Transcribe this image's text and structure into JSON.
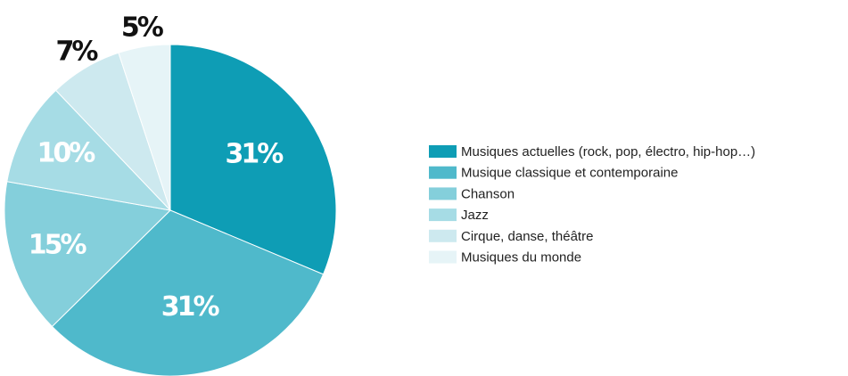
{
  "chart_data": {
    "type": "pie",
    "categories": [
      "Musiques actuelles (rock, pop, électro, hip-hop…)",
      "Musique classique et contemporaine",
      "Chanson",
      "Jazz",
      "Cirque, danse, théâtre",
      "Musiques du monde"
    ],
    "values": [
      31,
      31,
      15,
      10,
      7,
      5
    ],
    "value_labels": [
      "31%",
      "31%",
      "15%",
      "10%",
      "7%",
      "5%"
    ],
    "colors": [
      "#0e9db5",
      "#4fb9cb",
      "#84cfdb",
      "#a6dce5",
      "#cde9ef",
      "#e6f4f7"
    ]
  }
}
